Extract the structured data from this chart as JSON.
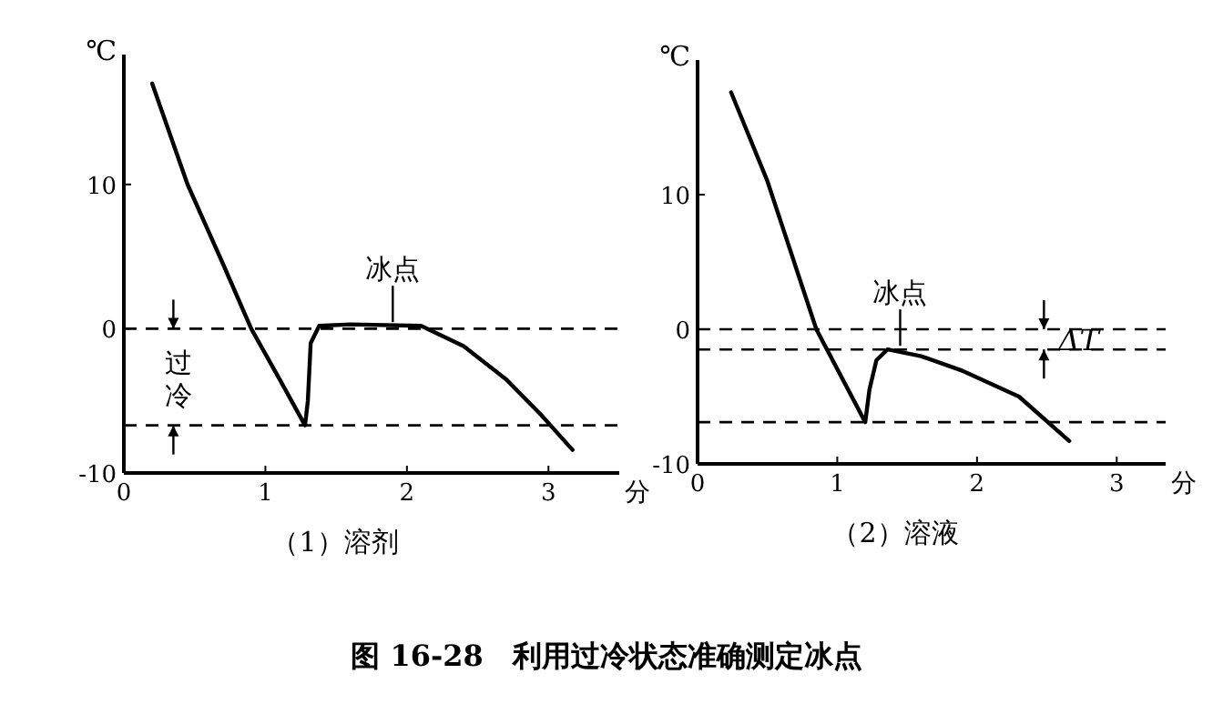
{
  "chart_data": [
    {
      "type": "line",
      "title": "（1）溶剂",
      "xlabel": "分",
      "ylabel": "℃",
      "x": [
        0.2,
        0.45,
        0.7,
        0.9,
        1.1,
        1.28,
        1.3,
        1.32,
        1.38,
        1.6,
        2.1,
        2.4,
        2.7,
        2.95,
        3.17
      ],
      "series": [
        {
          "color": "#000000",
          "values": [
            17,
            10,
            4.5,
            0,
            -3.5,
            -6.7,
            -5,
            -1,
            0.2,
            0.3,
            0.2,
            -1.2,
            -3.5,
            -6,
            -8.4
          ]
        }
      ],
      "xlim": [
        0,
        3.5
      ],
      "ylim": [
        -10,
        19
      ],
      "xticks": [
        0,
        1,
        2,
        3
      ],
      "yticks": [
        -10,
        0,
        10
      ],
      "grid": false,
      "marker": "none",
      "line_style": "solid",
      "ref_lines": [
        {
          "axis": "y",
          "value": 0,
          "line_style": "dashed",
          "color": "#000000"
        },
        {
          "axis": "y",
          "value": -6.7,
          "line_style": "dashed",
          "color": "#000000"
        }
      ],
      "annotations": [
        {
          "text": "冰点",
          "x": 1.9,
          "y": 0.2
        },
        "过冷"
      ]
    },
    {
      "type": "line",
      "title": "（2）溶液",
      "xlabel": "分",
      "ylabel": "℃",
      "x": [
        0.24,
        0.5,
        0.85,
        1.2,
        1.23,
        1.28,
        1.36,
        1.6,
        1.9,
        2.3,
        2.66
      ],
      "series": [
        {
          "color": "#000000",
          "values": [
            17.6,
            11,
            0,
            -6.9,
            -4.5,
            -2.3,
            -1.5,
            -2,
            -3.1,
            -5,
            -8.3
          ]
        }
      ],
      "xlim": [
        0,
        3.35
      ],
      "ylim": [
        -10,
        20
      ],
      "xticks": [
        0,
        1,
        2,
        3
      ],
      "yticks": [
        -10,
        0,
        10
      ],
      "grid": false,
      "marker": "none",
      "line_style": "solid",
      "ref_lines": [
        {
          "axis": "y",
          "value": 0,
          "line_style": "dashed",
          "color": "#000000"
        },
        {
          "axis": "y",
          "value": -1.5,
          "line_style": "dashed",
          "color": "#000000"
        },
        {
          "axis": "y",
          "value": -6.9,
          "line_style": "dashed",
          "color": "#000000"
        }
      ],
      "annotations": [
        {
          "text": "冰点",
          "x": 1.45,
          "y": -1.5
        },
        "ΔT"
      ]
    },
    {
      "type": "other",
      "title": "图 16-28　利用过冷状态准确测定冰点"
    }
  ]
}
